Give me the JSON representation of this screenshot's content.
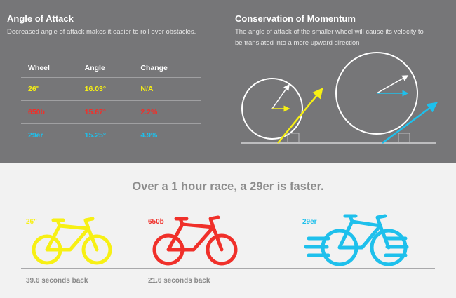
{
  "colors": {
    "yellow": "#f7f014",
    "red": "#f0302a",
    "blue": "#1ec0ec",
    "panel": "#767678",
    "ground": "#a9a9ab"
  },
  "angle_of_attack": {
    "title": "Angle of Attack",
    "subtitle": "Decreased angle of attack makes it easier to roll over obstacles.",
    "table": {
      "headers": [
        "Wheel",
        "Angle",
        "Change"
      ],
      "rows": [
        {
          "wheel": "26\"",
          "angle": "16.03°",
          "change": "N/A",
          "color": "#f7f014"
        },
        {
          "wheel": "650b",
          "angle": "15.67°",
          "change": "2.2%",
          "color": "#f0302a"
        },
        {
          "wheel": "29er",
          "angle": "15.25°",
          "change": "4.9%",
          "color": "#1ec0ec"
        }
      ]
    }
  },
  "momentum": {
    "title": "Conservation of Momentum",
    "subtitle_line1": "The angle of attack of the smaller wheel will cause its velocity to",
    "subtitle_line2": "be translated into a more upward direction"
  },
  "race": {
    "tagline": "Over a 1 hour race, a 29er is faster.",
    "bikes": [
      {
        "label": "26\"",
        "result": "39.6 seconds back",
        "color": "#f7f014",
        "icon": "bicycle-icon"
      },
      {
        "label": "650b",
        "result": "21.6 seconds back",
        "color": "#f0302a",
        "icon": "bicycle-icon"
      },
      {
        "label": "29er",
        "result": "",
        "color": "#1ec0ec",
        "icon": "bicycle-speed-icon"
      }
    ]
  }
}
